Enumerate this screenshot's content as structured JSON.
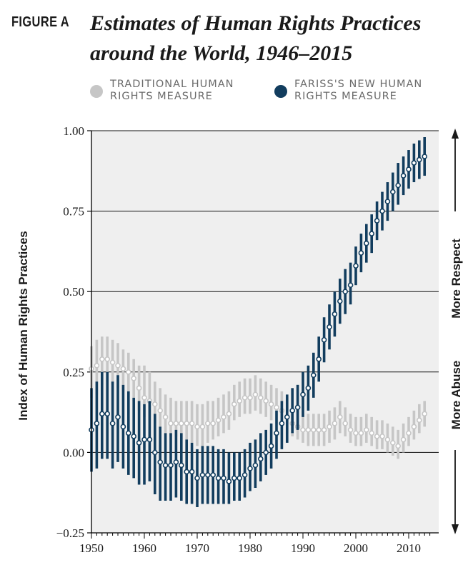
{
  "figure_label": "FIGURE A",
  "chart_data": {
    "type": "scatter",
    "title": "Estimates of Human Rights Practices around the World, 1946–2015",
    "ylabel": "Index of Human Rights Practices",
    "xlabel": "",
    "xlim": [
      1950,
      2015
    ],
    "ylim": [
      -0.25,
      1.0
    ],
    "x_ticks": [
      "1950",
      "1960",
      "1970",
      "1980",
      "1990",
      "2000",
      "2010"
    ],
    "y_ticks": [
      "1.00",
      "0.75",
      "0.50",
      "0.25",
      "0.00",
      "−0.25"
    ],
    "grid": "horizontal",
    "legend_position": "top",
    "right_annotations": {
      "up": "More Respect",
      "down": "More Abuse"
    },
    "colors": {
      "traditional": "#c6c6c6",
      "new": "#123d5e",
      "background": "#efefef"
    },
    "series": [
      {
        "name": "TRADITIONAL HUMAN RIGHTS MEASURE",
        "x": [
          1950,
          1951,
          1952,
          1953,
          1954,
          1955,
          1956,
          1957,
          1958,
          1959,
          1960,
          1961,
          1962,
          1963,
          1964,
          1965,
          1966,
          1967,
          1968,
          1969,
          1970,
          1971,
          1972,
          1973,
          1974,
          1975,
          1976,
          1977,
          1978,
          1979,
          1980,
          1981,
          1982,
          1983,
          1984,
          1985,
          1986,
          1987,
          1988,
          1989,
          1990,
          1991,
          1992,
          1993,
          1994,
          1995,
          1996,
          1997,
          1998,
          1999,
          2000,
          2001,
          2002,
          2003,
          2004,
          2005,
          2006,
          2007,
          2008,
          2009,
          2010,
          2011,
          2012,
          2013
        ],
        "y": [
          0.26,
          0.27,
          0.29,
          0.29,
          0.28,
          0.27,
          0.26,
          0.25,
          0.23,
          0.2,
          0.17,
          0.16,
          0.15,
          0.13,
          0.11,
          0.09,
          0.09,
          0.09,
          0.09,
          0.09,
          0.08,
          0.08,
          0.09,
          0.09,
          0.1,
          0.11,
          0.12,
          0.15,
          0.16,
          0.17,
          0.17,
          0.18,
          0.17,
          0.16,
          0.15,
          0.14,
          0.13,
          0.11,
          0.09,
          0.08,
          0.07,
          0.07,
          0.07,
          0.07,
          0.07,
          0.08,
          0.09,
          0.11,
          0.09,
          0.07,
          0.06,
          0.06,
          0.07,
          0.06,
          0.05,
          0.05,
          0.04,
          0.03,
          0.02,
          0.04,
          0.06,
          0.08,
          0.1,
          0.12
        ],
        "lower": [
          0.17,
          0.18,
          0.21,
          0.22,
          0.21,
          0.2,
          0.19,
          0.18,
          0.16,
          0.13,
          0.11,
          0.1,
          0.09,
          0.07,
          0.06,
          0.05,
          0.05,
          0.04,
          0.04,
          0.03,
          0.02,
          0.02,
          0.03,
          0.04,
          0.05,
          0.06,
          0.07,
          0.1,
          0.11,
          0.12,
          0.12,
          0.13,
          0.12,
          0.11,
          0.1,
          0.09,
          0.08,
          0.06,
          0.05,
          0.04,
          0.03,
          0.02,
          0.02,
          0.02,
          0.02,
          0.03,
          0.04,
          0.06,
          0.05,
          0.03,
          0.02,
          0.02,
          0.03,
          0.02,
          0.01,
          0.01,
          0.0,
          -0.01,
          -0.02,
          0.0,
          0.02,
          0.04,
          0.06,
          0.08
        ],
        "upper": [
          0.33,
          0.35,
          0.36,
          0.36,
          0.35,
          0.34,
          0.32,
          0.31,
          0.29,
          0.27,
          0.27,
          0.25,
          0.22,
          0.2,
          0.18,
          0.17,
          0.16,
          0.16,
          0.16,
          0.16,
          0.15,
          0.15,
          0.16,
          0.16,
          0.17,
          0.18,
          0.19,
          0.21,
          0.22,
          0.23,
          0.23,
          0.24,
          0.23,
          0.22,
          0.21,
          0.2,
          0.19,
          0.17,
          0.15,
          0.14,
          0.13,
          0.12,
          0.12,
          0.12,
          0.12,
          0.13,
          0.14,
          0.16,
          0.14,
          0.12,
          0.11,
          0.11,
          0.12,
          0.11,
          0.1,
          0.1,
          0.09,
          0.08,
          0.07,
          0.09,
          0.11,
          0.13,
          0.15,
          0.16
        ]
      },
      {
        "name": "FARISS'S NEW HUMAN RIGHTS MEASURE",
        "x": [
          1950,
          1951,
          1952,
          1953,
          1954,
          1955,
          1956,
          1957,
          1958,
          1959,
          1960,
          1961,
          1962,
          1963,
          1964,
          1965,
          1966,
          1967,
          1968,
          1969,
          1970,
          1971,
          1972,
          1973,
          1974,
          1975,
          1976,
          1977,
          1978,
          1979,
          1980,
          1981,
          1982,
          1983,
          1984,
          1985,
          1986,
          1987,
          1988,
          1989,
          1990,
          1991,
          1992,
          1993,
          1994,
          1995,
          1996,
          1997,
          1998,
          1999,
          2000,
          2001,
          2002,
          2003,
          2004,
          2005,
          2006,
          2007,
          2008,
          2009,
          2010,
          2011,
          2012,
          2013
        ],
        "y": [
          0.07,
          0.09,
          0.12,
          0.12,
          0.09,
          0.11,
          0.08,
          0.06,
          0.05,
          0.03,
          0.04,
          0.04,
          0.0,
          -0.03,
          -0.04,
          -0.04,
          -0.03,
          -0.04,
          -0.06,
          -0.06,
          -0.08,
          -0.07,
          -0.07,
          -0.07,
          -0.08,
          -0.08,
          -0.09,
          -0.08,
          -0.08,
          -0.07,
          -0.05,
          -0.04,
          -0.02,
          0.0,
          0.02,
          0.06,
          0.09,
          0.11,
          0.13,
          0.14,
          0.18,
          0.2,
          0.24,
          0.29,
          0.35,
          0.39,
          0.43,
          0.47,
          0.5,
          0.52,
          0.58,
          0.62,
          0.65,
          0.68,
          0.72,
          0.75,
          0.78,
          0.81,
          0.83,
          0.86,
          0.88,
          0.9,
          0.91,
          0.92
        ],
        "lower": [
          -0.06,
          -0.05,
          -0.02,
          -0.02,
          -0.05,
          -0.03,
          -0.05,
          -0.07,
          -0.08,
          -0.1,
          -0.1,
          -0.09,
          -0.13,
          -0.15,
          -0.15,
          -0.15,
          -0.14,
          -0.15,
          -0.16,
          -0.16,
          -0.17,
          -0.16,
          -0.16,
          -0.16,
          -0.16,
          -0.16,
          -0.16,
          -0.15,
          -0.15,
          -0.14,
          -0.12,
          -0.11,
          -0.09,
          -0.07,
          -0.05,
          -0.02,
          0.01,
          0.03,
          0.06,
          0.07,
          0.11,
          0.13,
          0.17,
          0.22,
          0.28,
          0.32,
          0.36,
          0.4,
          0.43,
          0.46,
          0.52,
          0.56,
          0.59,
          0.62,
          0.66,
          0.69,
          0.72,
          0.75,
          0.77,
          0.8,
          0.82,
          0.84,
          0.85,
          0.86
        ],
        "upper": [
          0.2,
          0.22,
          0.25,
          0.25,
          0.22,
          0.24,
          0.21,
          0.19,
          0.17,
          0.16,
          0.15,
          0.16,
          0.12,
          0.08,
          0.06,
          0.06,
          0.07,
          0.06,
          0.04,
          0.03,
          0.01,
          0.02,
          0.02,
          0.02,
          0.01,
          0.01,
          0.0,
          0.0,
          0.0,
          0.01,
          0.03,
          0.04,
          0.06,
          0.07,
          0.09,
          0.13,
          0.16,
          0.18,
          0.2,
          0.21,
          0.25,
          0.27,
          0.31,
          0.36,
          0.42,
          0.46,
          0.5,
          0.54,
          0.57,
          0.59,
          0.64,
          0.68,
          0.71,
          0.74,
          0.78,
          0.81,
          0.84,
          0.87,
          0.9,
          0.92,
          0.94,
          0.96,
          0.97,
          0.98
        ]
      }
    ]
  }
}
